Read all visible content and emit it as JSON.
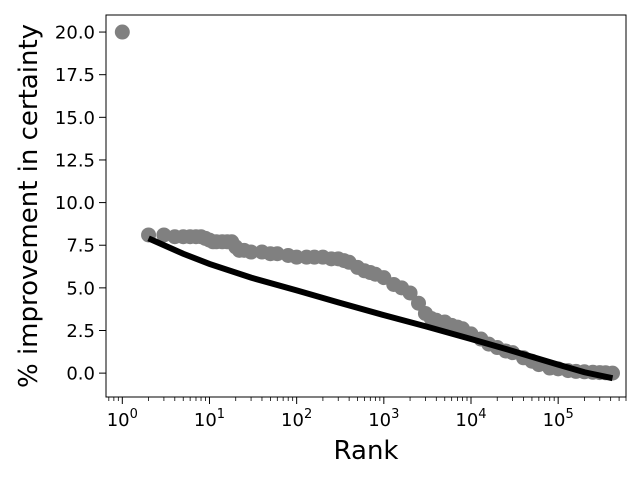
{
  "chart_data": {
    "type": "scatter",
    "title": "",
    "xlabel": "Rank",
    "ylabel": "% improvement in certainty",
    "x_scale": "log",
    "xlim": [
      0.65,
      600000
    ],
    "ylim": [
      -1.4,
      21
    ],
    "grid": false,
    "x_ticks": [
      {
        "value": 1,
        "base": "10",
        "exp": "0"
      },
      {
        "value": 10,
        "base": "10",
        "exp": "1"
      },
      {
        "value": 100,
        "base": "10",
        "exp": "2"
      },
      {
        "value": 1000,
        "base": "10",
        "exp": "3"
      },
      {
        "value": 10000,
        "base": "10",
        "exp": "4"
      },
      {
        "value": 100000,
        "base": "10",
        "exp": "5"
      }
    ],
    "y_ticks": [
      {
        "value": 0,
        "label": "0.0"
      },
      {
        "value": 2.5,
        "label": "2.5"
      },
      {
        "value": 5,
        "label": "5.0"
      },
      {
        "value": 7.5,
        "label": "7.5"
      },
      {
        "value": 10,
        "label": "10.0"
      },
      {
        "value": 12.5,
        "label": "12.5"
      },
      {
        "value": 15,
        "label": "15.0"
      },
      {
        "value": 17.5,
        "label": "17.5"
      },
      {
        "value": 20,
        "label": "20.0"
      }
    ],
    "series": [
      {
        "type": "scatter",
        "color": "#808080",
        "points": [
          [
            1,
            20.0
          ],
          [
            2,
            8.1
          ],
          [
            3,
            8.1
          ],
          [
            4,
            8.0
          ],
          [
            5,
            8.0
          ],
          [
            6,
            8.0
          ],
          [
            7,
            8.0
          ],
          [
            8,
            8.0
          ],
          [
            9,
            7.9
          ],
          [
            10,
            7.8
          ],
          [
            11,
            7.7
          ],
          [
            12,
            7.7
          ],
          [
            14,
            7.7
          ],
          [
            16,
            7.7
          ],
          [
            18,
            7.7
          ],
          [
            20,
            7.4
          ],
          [
            22,
            7.2
          ],
          [
            25,
            7.2
          ],
          [
            30,
            7.1
          ],
          [
            40,
            7.1
          ],
          [
            50,
            7.0
          ],
          [
            60,
            7.0
          ],
          [
            80,
            6.9
          ],
          [
            100,
            6.8
          ],
          [
            130,
            6.8
          ],
          [
            160,
            6.8
          ],
          [
            200,
            6.8
          ],
          [
            250,
            6.7
          ],
          [
            300,
            6.7
          ],
          [
            350,
            6.6
          ],
          [
            400,
            6.5
          ],
          [
            500,
            6.2
          ],
          [
            600,
            6.0
          ],
          [
            700,
            5.9
          ],
          [
            800,
            5.8
          ],
          [
            1000,
            5.6
          ],
          [
            1300,
            5.2
          ],
          [
            1600,
            5.0
          ],
          [
            2000,
            4.7
          ],
          [
            2500,
            4.1
          ],
          [
            3000,
            3.5
          ],
          [
            3500,
            3.2
          ],
          [
            4000,
            3.1
          ],
          [
            5000,
            3.0
          ],
          [
            6000,
            2.8
          ],
          [
            7000,
            2.7
          ],
          [
            8000,
            2.6
          ],
          [
            10000,
            2.3
          ],
          [
            13000,
            2.0
          ],
          [
            16000,
            1.7
          ],
          [
            20000,
            1.5
          ],
          [
            25000,
            1.3
          ],
          [
            30000,
            1.2
          ],
          [
            40000,
            0.9
          ],
          [
            50000,
            0.7
          ],
          [
            60000,
            0.5
          ],
          [
            80000,
            0.3
          ],
          [
            100000,
            0.25
          ],
          [
            130000,
            0.15
          ],
          [
            160000,
            0.1
          ],
          [
            200000,
            0.08
          ],
          [
            250000,
            0.05
          ],
          [
            300000,
            0.03
          ],
          [
            350000,
            0.02
          ],
          [
            420000,
            0.0
          ]
        ]
      },
      {
        "type": "line",
        "color": "#000000",
        "points": [
          [
            2,
            7.9
          ],
          [
            5,
            7.0
          ],
          [
            10,
            6.4
          ],
          [
            30,
            5.6
          ],
          [
            100,
            4.85
          ],
          [
            300,
            4.15
          ],
          [
            1000,
            3.4
          ],
          [
            3000,
            2.75
          ],
          [
            10000,
            2.0
          ],
          [
            30000,
            1.3
          ],
          [
            100000,
            0.5
          ],
          [
            200000,
            0.05
          ],
          [
            420000,
            -0.3
          ]
        ]
      }
    ]
  }
}
